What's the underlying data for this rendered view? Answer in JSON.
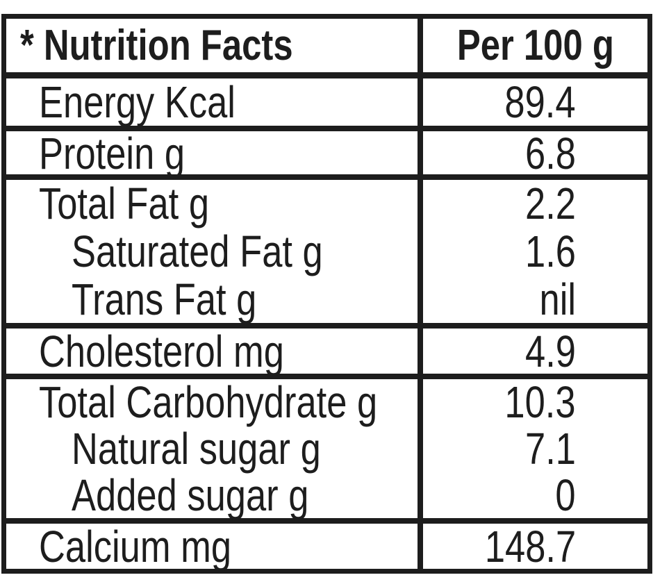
{
  "colors": {
    "background": "#ffffff",
    "border": "#1d1d1d",
    "text": "#1d1d1d"
  },
  "nutrition_table": {
    "header": {
      "title": "* Nutrition Facts",
      "column": "Per 100 g"
    },
    "sections": [
      {
        "lines": [
          {
            "label": "Energy Kcal",
            "value": "89.4",
            "indent": false
          }
        ]
      },
      {
        "lines": [
          {
            "label": "Protein g",
            "value": "6.8",
            "indent": false
          }
        ]
      },
      {
        "lines": [
          {
            "label": "Total Fat g",
            "value": "2.2",
            "indent": false
          },
          {
            "label": "Saturated Fat g",
            "value": "1.6",
            "indent": true
          },
          {
            "label": "Trans Fat g",
            "value": "nil",
            "indent": true
          }
        ]
      },
      {
        "lines": [
          {
            "label": "Cholesterol mg",
            "value": "4.9",
            "indent": false
          }
        ]
      },
      {
        "lines": [
          {
            "label": "Total Carbohydrate g",
            "value": "10.3",
            "indent": false
          },
          {
            "label": "Natural sugar g",
            "value": "7.1",
            "indent": true
          },
          {
            "label": "Added sugar g",
            "value": "0",
            "indent": true
          }
        ]
      },
      {
        "lines": [
          {
            "label": "Calcium mg",
            "value": "148.7",
            "indent": false
          }
        ]
      }
    ]
  }
}
